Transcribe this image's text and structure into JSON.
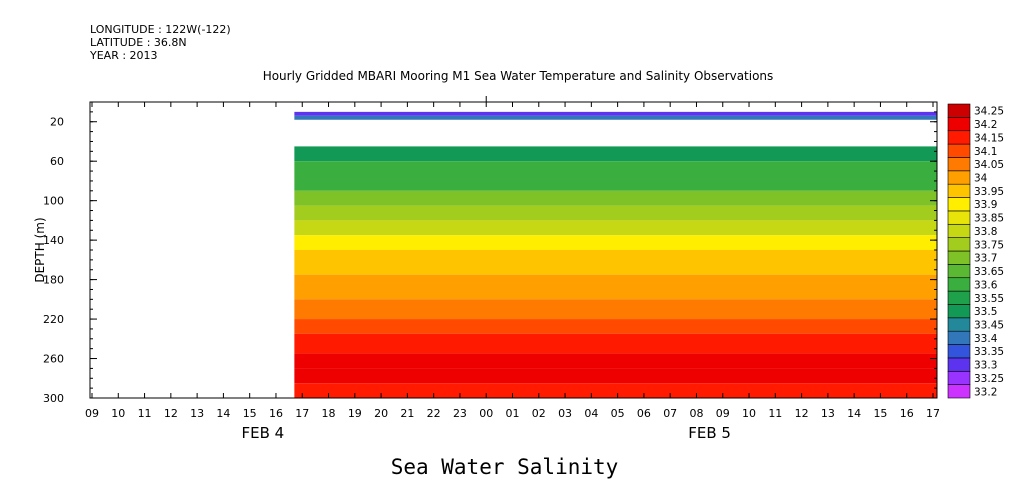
{
  "header": {
    "longitude": "LONGITUDE : 122W(-122)",
    "latitude": "LATITUDE : 36.8N",
    "year": "YEAR : 2013"
  },
  "chart_data": {
    "type": "heatmap",
    "title": "Hourly Gridded MBARI Mooring M1 Sea Water Temperature and Salinity Observations",
    "bottom_title": "Sea Water Salinity",
    "ylabel": "DEPTH (m)",
    "ylim": [
      300,
      0
    ],
    "y_ticks": [
      20,
      60,
      100,
      140,
      180,
      220,
      260,
      300
    ],
    "x_tick_labels": [
      "09",
      "10",
      "11",
      "12",
      "13",
      "14",
      "15",
      "16",
      "17",
      "18",
      "19",
      "20",
      "21",
      "22",
      "23",
      "00",
      "01",
      "02",
      "03",
      "04",
      "05",
      "06",
      "07",
      "08",
      "09",
      "10",
      "11",
      "12",
      "13",
      "14",
      "15",
      "16",
      "17"
    ],
    "date_labels": [
      {
        "text": "FEB  4",
        "at_hour_index": 6.5
      },
      {
        "text": "FEB  5",
        "at_hour_index": 23.5
      }
    ],
    "data_start_hour_index": 7.7,
    "colorbar_levels": [
      "33.2",
      "33.25",
      "33.3",
      "33.35",
      "33.4",
      "33.45",
      "33.5",
      "33.55",
      "33.6",
      "33.65",
      "33.7",
      "33.75",
      "33.8",
      "33.85",
      "33.9",
      "33.95",
      "34",
      "34.05",
      "34.1",
      "34.15",
      "34.2",
      "34.25"
    ],
    "colorbar_colors": [
      "#cc33ff",
      "#9933ff",
      "#5c33ee",
      "#3355dd",
      "#3377bb",
      "#22889a",
      "#119955",
      "#1fa04a",
      "#3aae3e",
      "#5ab833",
      "#7ec228",
      "#a2cc1e",
      "#c6d714",
      "#e8e40a",
      "#ffee00",
      "#ffc400",
      "#ffa000",
      "#ff7a00",
      "#ff4a00",
      "#ff1a00",
      "#ee0000",
      "#cc0000"
    ],
    "depth_profile": [
      {
        "depth": 10,
        "salinity": 33.32
      },
      {
        "depth": 14,
        "salinity": 33.44
      },
      {
        "depth": 18,
        "salinity": null
      },
      {
        "depth": 40,
        "salinity": null
      },
      {
        "depth": 45,
        "salinity": 33.53
      },
      {
        "depth": 60,
        "salinity": 33.6
      },
      {
        "depth": 75,
        "salinity": 33.64
      },
      {
        "depth": 90,
        "salinity": 33.7
      },
      {
        "depth": 105,
        "salinity": 33.77
      },
      {
        "depth": 120,
        "salinity": 33.83
      },
      {
        "depth": 135,
        "salinity": 33.9
      },
      {
        "depth": 150,
        "salinity": 33.97
      },
      {
        "depth": 175,
        "salinity": 34.0
      },
      {
        "depth": 200,
        "salinity": 34.05
      },
      {
        "depth": 220,
        "salinity": 34.14
      },
      {
        "depth": 235,
        "salinity": 34.19
      },
      {
        "depth": 255,
        "salinity": 34.22
      },
      {
        "depth": 270,
        "salinity": 34.2
      },
      {
        "depth": 285,
        "salinity": 34.15
      },
      {
        "depth": 300,
        "salinity": 34.12
      }
    ]
  }
}
